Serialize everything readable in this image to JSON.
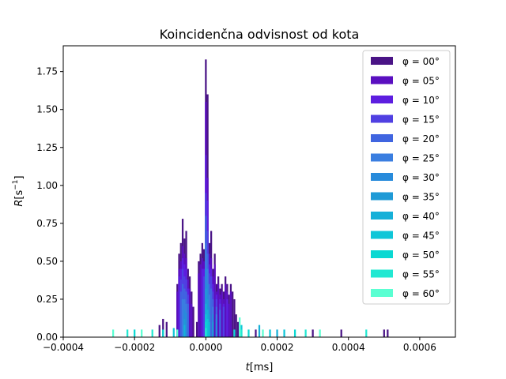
{
  "chart_data": {
    "type": "bar",
    "title": "Koincidenčna odvisnost od kota",
    "xlabel_var": "t",
    "xlabel_unit": "[ms]",
    "ylabel_var": "R",
    "ylabel_unit_prefix": "[s",
    "ylabel_unit_exp": "−1",
    "ylabel_unit_suffix": "]",
    "xlim": [
      -0.0004,
      0.0007
    ],
    "ylim": [
      0,
      1.92
    ],
    "xticks": [
      -0.0004,
      -0.0002,
      0.0,
      0.0002,
      0.0004,
      0.0006
    ],
    "xtick_labels": [
      "−0.0004",
      "−0.0002",
      "0.0000",
      "0.0002",
      "0.0004",
      "0.0006"
    ],
    "yticks": [
      0,
      0.25,
      0.5,
      0.75,
      1.0,
      1.25,
      1.5,
      1.75
    ],
    "ytick_labels": [
      "0.00",
      "0.25",
      "0.50",
      "0.75",
      "1.00",
      "1.25",
      "1.50",
      "1.75"
    ],
    "legend_position": "top-right",
    "series": [
      {
        "name": "φ =  00°",
        "color": "#4a1486",
        "bins": [
          [
            -8e-05,
            0.35
          ],
          [
            -7.5e-05,
            0.55
          ],
          [
            -7e-05,
            0.62
          ],
          [
            -6.5e-05,
            0.78
          ],
          [
            -6e-05,
            0.65
          ],
          [
            -5.5e-05,
            0.7
          ],
          [
            -5e-05,
            0.45
          ],
          [
            -4.5e-05,
            0.4
          ],
          [
            -4e-05,
            0.3
          ],
          [
            -3.5e-05,
            0.2
          ],
          [
            -2.5e-05,
            0.1
          ],
          [
            -2e-05,
            0.5
          ],
          [
            -1.5e-05,
            0.55
          ],
          [
            -1e-05,
            0.62
          ],
          [
            -5e-06,
            0.58
          ],
          [
            0.0,
            1.83
          ],
          [
            5e-06,
            1.6
          ],
          [
            1e-05,
            0.62
          ],
          [
            1.5e-05,
            0.7
          ],
          [
            2e-05,
            0.45
          ],
          [
            2.5e-05,
            0.55
          ],
          [
            3e-05,
            0.35
          ],
          [
            3.5e-05,
            0.4
          ],
          [
            4e-05,
            0.32
          ],
          [
            4.5e-05,
            0.35
          ],
          [
            5e-05,
            0.3
          ],
          [
            5.5e-05,
            0.4
          ],
          [
            6e-05,
            0.35
          ],
          [
            6.5e-05,
            0.28
          ],
          [
            7e-05,
            0.35
          ],
          [
            7.5e-05,
            0.3
          ],
          [
            8e-05,
            0.25
          ],
          [
            8.5e-05,
            0.15
          ],
          [
            9e-05,
            0.1
          ],
          [
            -0.00013,
            0.08
          ],
          [
            -0.00012,
            0.12
          ],
          [
            -0.00011,
            0.1
          ],
          [
            0.00014,
            0.05
          ],
          [
            0.0003,
            0.05
          ],
          [
            0.00038,
            0.05
          ],
          [
            0.0005,
            0.05
          ],
          [
            0.00051,
            0.05
          ]
        ]
      },
      {
        "name": "φ =  05°",
        "color": "#5a0fc0",
        "bins": [
          [
            -8e-05,
            0.3
          ],
          [
            -7.5e-05,
            0.45
          ],
          [
            -7e-05,
            0.5
          ],
          [
            -6.5e-05,
            0.6
          ],
          [
            -6e-05,
            0.55
          ],
          [
            -5.5e-05,
            0.52
          ],
          [
            -5e-05,
            0.38
          ],
          [
            -4.5e-05,
            0.32
          ],
          [
            -4e-05,
            0.22
          ],
          [
            -2e-05,
            0.42
          ],
          [
            -1.5e-05,
            0.48
          ],
          [
            -1e-05,
            0.52
          ],
          [
            -5e-06,
            0.5
          ],
          [
            0.0,
            1.55
          ],
          [
            5e-06,
            1.05
          ],
          [
            1e-05,
            0.55
          ],
          [
            1.5e-05,
            0.52
          ],
          [
            2e-05,
            0.4
          ],
          [
            2.5e-05,
            0.48
          ],
          [
            3e-05,
            0.3
          ],
          [
            3.5e-05,
            0.35
          ],
          [
            4e-05,
            0.28
          ],
          [
            4.5e-05,
            0.3
          ],
          [
            5e-05,
            0.25
          ],
          [
            5.5e-05,
            0.35
          ],
          [
            6e-05,
            0.3
          ],
          [
            6.5e-05,
            0.22
          ],
          [
            7e-05,
            0.3
          ]
        ]
      },
      {
        "name": "φ =  10°",
        "color": "#5d1ee0",
        "bins": [
          [
            -7.5e-05,
            0.4
          ],
          [
            -7e-05,
            0.45
          ],
          [
            -6.5e-05,
            0.52
          ],
          [
            -6e-05,
            0.48
          ],
          [
            -5.5e-05,
            0.45
          ],
          [
            -5e-05,
            0.32
          ],
          [
            -1e-05,
            0.45
          ],
          [
            -5e-06,
            0.45
          ],
          [
            0.0,
            1.2
          ],
          [
            5e-06,
            0.9
          ],
          [
            1e-05,
            0.48
          ],
          [
            1.5e-05,
            0.45
          ],
          [
            2e-05,
            0.35
          ],
          [
            3e-05,
            0.28
          ],
          [
            4e-05,
            0.25
          ],
          [
            5e-05,
            0.22
          ],
          [
            6e-05,
            0.25
          ]
        ]
      },
      {
        "name": "φ =  15°",
        "color": "#5040e2",
        "bins": [
          [
            -7e-05,
            0.38
          ],
          [
            -6.5e-05,
            0.45
          ],
          [
            -6e-05,
            0.4
          ],
          [
            -5.5e-05,
            0.38
          ],
          [
            -5e-05,
            0.28
          ],
          [
            -5e-06,
            0.4
          ],
          [
            0.0,
            0.95
          ],
          [
            5e-06,
            0.7
          ],
          [
            1e-05,
            0.42
          ],
          [
            1.5e-05,
            0.4
          ],
          [
            2e-05,
            0.3
          ],
          [
            3e-05,
            0.25
          ],
          [
            4e-05,
            0.22
          ],
          [
            5e-05,
            0.2
          ]
        ]
      },
      {
        "name": "φ =  20°",
        "color": "#4065e0",
        "bins": [
          [
            -7e-05,
            0.3
          ],
          [
            -6.5e-05,
            0.35
          ],
          [
            -6e-05,
            0.32
          ],
          [
            -5.5e-05,
            0.3
          ],
          [
            -5e-05,
            0.22
          ],
          [
            0.0,
            0.8
          ],
          [
            5e-06,
            0.55
          ],
          [
            1e-05,
            0.35
          ],
          [
            1.5e-05,
            0.32
          ],
          [
            2e-05,
            0.25
          ],
          [
            3e-05,
            0.2
          ],
          [
            4e-05,
            0.18
          ]
        ]
      },
      {
        "name": "φ =  25°",
        "color": "#3a7ee0",
        "bins": [
          [
            -6.5e-05,
            0.25
          ],
          [
            -6e-05,
            0.25
          ],
          [
            -5.5e-05,
            0.22
          ],
          [
            0.0,
            0.62
          ],
          [
            5e-06,
            0.45
          ],
          [
            1e-05,
            0.28
          ],
          [
            2e-05,
            0.2
          ],
          [
            3e-05,
            0.15
          ]
        ]
      },
      {
        "name": "φ =  30°",
        "color": "#288bdb",
        "bins": [
          [
            -6e-05,
            0.18
          ],
          [
            -5.5e-05,
            0.16
          ],
          [
            0.0,
            0.45
          ],
          [
            5e-06,
            0.35
          ],
          [
            1e-05,
            0.2
          ],
          [
            2e-05,
            0.15
          ],
          [
            3e-05,
            0.12
          ]
        ]
      },
      {
        "name": "φ =  35°",
        "color": "#1f9ad6",
        "bins": [
          [
            -6e-05,
            0.12
          ],
          [
            0.0,
            0.32
          ],
          [
            5e-06,
            0.25
          ],
          [
            1e-05,
            0.15
          ],
          [
            2e-05,
            0.1
          ]
        ]
      },
      {
        "name": "φ =  40°",
        "color": "#16b0d8",
        "bins": [
          [
            -6e-05,
            0.08
          ],
          [
            0.0,
            0.22
          ],
          [
            5e-06,
            0.18
          ],
          [
            1e-05,
            0.1
          ],
          [
            0.00015,
            0.08
          ],
          [
            0.0002,
            0.05
          ]
        ]
      },
      {
        "name": "φ =  45°",
        "color": "#0fc6d8",
        "bins": [
          [
            -9e-05,
            0.06
          ],
          [
            0.0,
            0.15
          ],
          [
            5e-06,
            0.12
          ],
          [
            0.0001,
            0.08
          ],
          [
            0.00018,
            0.05
          ],
          [
            0.00022,
            0.05
          ]
        ]
      },
      {
        "name": "φ =  50°",
        "color": "#0ad8d2",
        "bins": [
          [
            -0.0002,
            0.05
          ],
          [
            -0.00012,
            0.05
          ],
          [
            0.0,
            0.1
          ],
          [
            8e-05,
            0.05
          ],
          [
            0.00012,
            0.05
          ],
          [
            0.00025,
            0.05
          ]
        ]
      },
      {
        "name": "φ =  55°",
        "color": "#22e8d2",
        "bins": [
          [
            -0.00022,
            0.05
          ],
          [
            -0.00015,
            0.05
          ],
          [
            0.0,
            0.06
          ],
          [
            0.0001,
            0.05
          ],
          [
            0.00028,
            0.05
          ],
          [
            0.00045,
            0.05
          ]
        ]
      },
      {
        "name": "φ =  60°",
        "color": "#5affd2",
        "bins": [
          [
            -0.00026,
            0.05
          ],
          [
            -0.00018,
            0.05
          ],
          [
            -8e-05,
            0.05
          ],
          [
            9.5e-05,
            0.13
          ],
          [
            0.00016,
            0.05
          ],
          [
            0.00032,
            0.05
          ]
        ]
      }
    ]
  }
}
